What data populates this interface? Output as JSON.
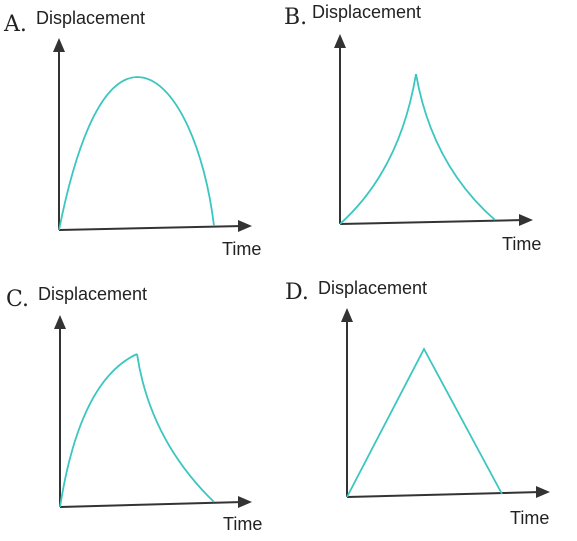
{
  "panels": [
    {
      "letter": "A.",
      "y_label": "Displacement",
      "x_label": "Time",
      "curve_shape": "symmetric-arch"
    },
    {
      "letter": "B.",
      "y_label": "Displacement",
      "x_label": "Time",
      "curve_shape": "concave-cusp"
    },
    {
      "letter": "C.",
      "y_label": "Displacement",
      "x_label": "Time",
      "curve_shape": "convex-rise-concave-fall"
    },
    {
      "letter": "D.",
      "y_label": "Displacement",
      "x_label": "Time",
      "curve_shape": "linear-triangle"
    }
  ],
  "colors": {
    "curve": "#3cc6c0",
    "axis": "#333333",
    "text": "#222222"
  }
}
